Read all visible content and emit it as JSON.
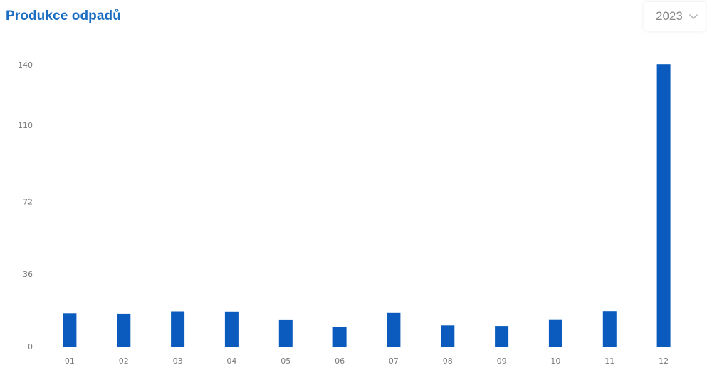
{
  "header": {
    "title": "Produkce odpadů"
  },
  "year_select": {
    "value": "2023",
    "icon": "chevron-down-icon"
  },
  "colors": {
    "accent": "#1b6ec2",
    "bar": "#0a5bbd"
  },
  "chart_data": {
    "type": "bar",
    "categories": [
      "01",
      "02",
      "03",
      "04",
      "05",
      "06",
      "07",
      "08",
      "09",
      "10",
      "11",
      "12"
    ],
    "values": [
      16.5,
      16.3,
      17.5,
      17.4,
      13.1,
      9.6,
      16.7,
      10.5,
      10.2,
      13.2,
      17.6,
      140.3
    ],
    "ylim": [
      0,
      145
    ],
    "yticks": [
      0,
      36,
      72,
      110,
      140
    ],
    "grid": false,
    "legend": "none"
  }
}
